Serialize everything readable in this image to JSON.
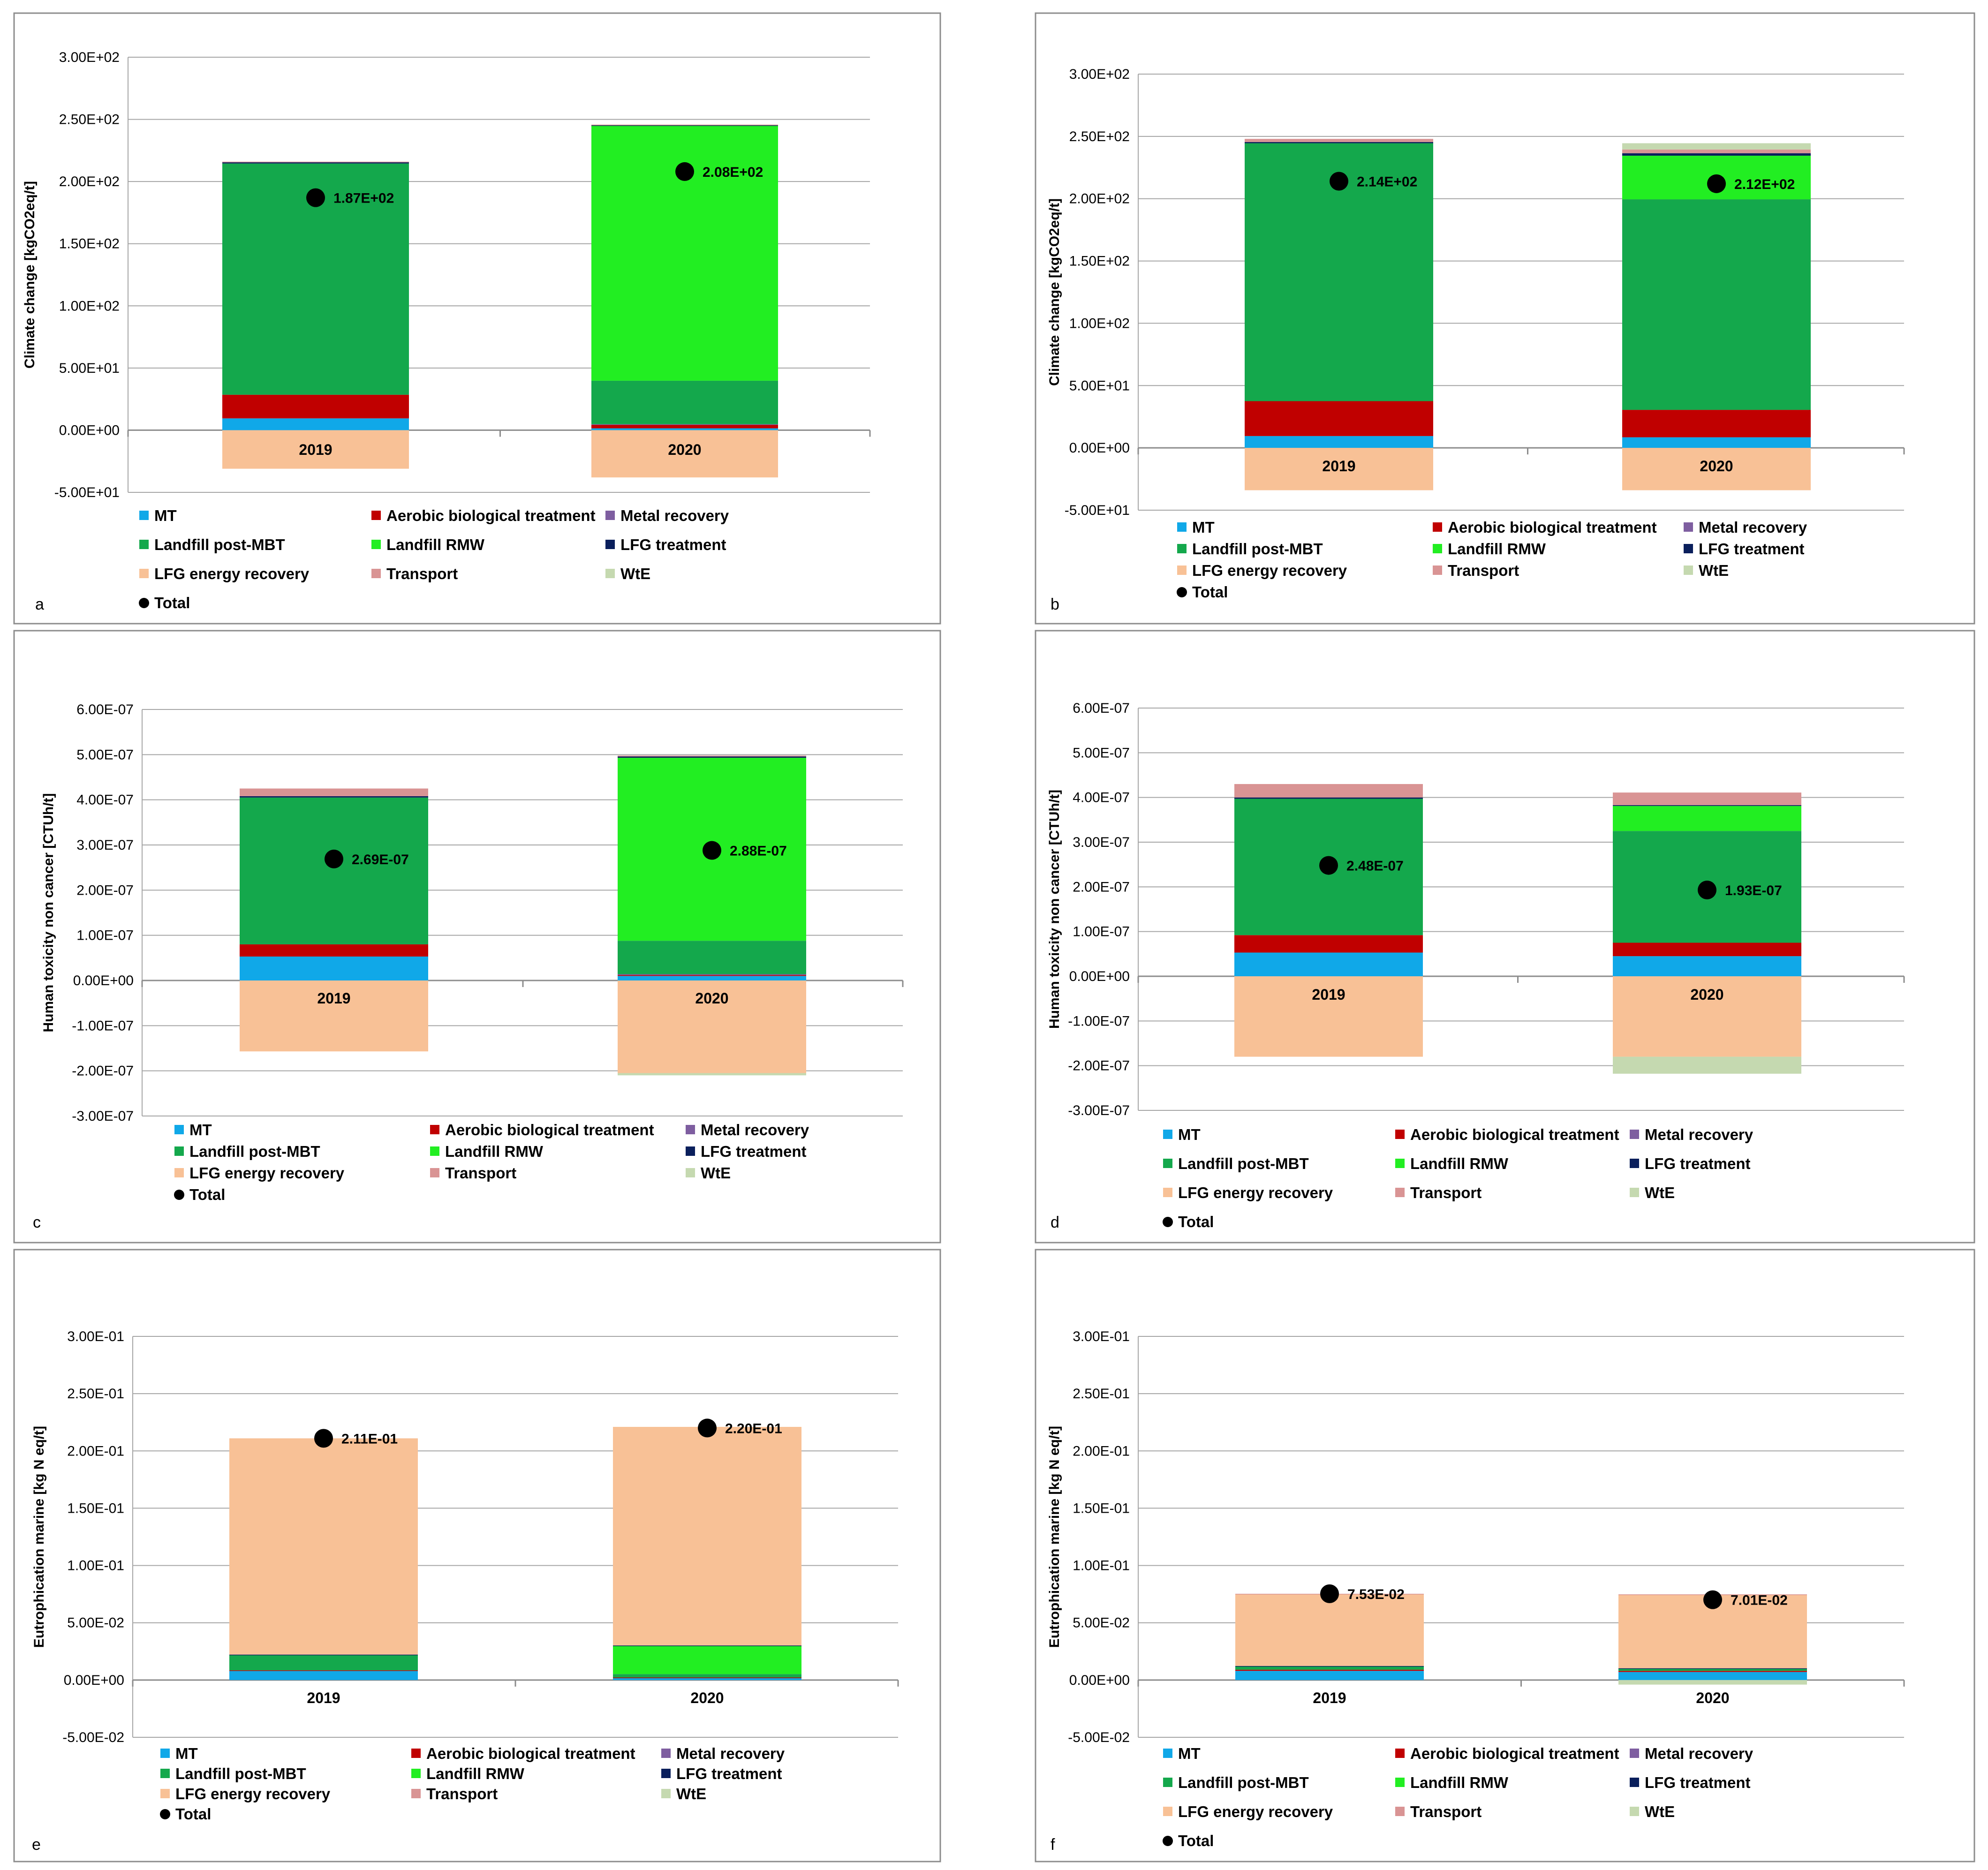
{
  "figure": {
    "categories": [
      "2019",
      "2020"
    ],
    "legend": {
      "items": [
        {
          "key": "mt",
          "label": "MT",
          "color": "#10A8E8",
          "marker": "square"
        },
        {
          "key": "abt",
          "label": "Aerobic biological treatment",
          "color": "#C00000",
          "marker": "square"
        },
        {
          "key": "metal",
          "label": "Metal recovery",
          "color": "#7E5EA0",
          "marker": "square"
        },
        {
          "key": "lfpost",
          "label": "Landfill post-MBT",
          "color": "#14A84C",
          "marker": "square"
        },
        {
          "key": "lfrmw",
          "label": "Landfill RMW",
          "color": "#22EE22",
          "marker": "square"
        },
        {
          "key": "lfg",
          "label": "LFG treatment",
          "color": "#0A1F5C",
          "marker": "square"
        },
        {
          "key": "lfgenergy",
          "label": "LFG energy recovery",
          "color": "#F8C196",
          "marker": "square"
        },
        {
          "key": "transport",
          "label": "Transport",
          "color": "#D99494",
          "marker": "square"
        },
        {
          "key": "wte",
          "label": "WtE",
          "color": "#C5D9B0",
          "marker": "square"
        },
        {
          "key": "total",
          "label": "Total",
          "color": "#000000",
          "marker": "circle"
        }
      ]
    }
  },
  "chart_data": [
    {
      "panel": "a",
      "type": "bar",
      "stacked": true,
      "ylabel": "Climate change [kgCO2eq/t]",
      "ylim": [
        -50,
        300
      ],
      "yticks": [
        -50,
        0,
        50,
        100,
        150,
        200,
        250,
        300
      ],
      "yticklabels": [
        "-5.00E+01",
        "0.00E+00",
        "5.00E+01",
        "1.00E+02",
        "1.50E+02",
        "2.00E+02",
        "2.50E+02",
        "3.00E+02"
      ],
      "categories": [
        "2019",
        "2020"
      ],
      "series": [
        {
          "key": "mt",
          "values": [
            9.5,
            1.5
          ]
        },
        {
          "key": "abt",
          "values": [
            19,
            3
          ]
        },
        {
          "key": "metal",
          "values": [
            0,
            0.3
          ]
        },
        {
          "key": "lfpost",
          "values": [
            186,
            35
          ]
        },
        {
          "key": "lfrmw",
          "values": [
            0,
            205
          ]
        },
        {
          "key": "lfg",
          "values": [
            1,
            0.5
          ]
        },
        {
          "key": "lfgenergy",
          "values": [
            -31,
            -38
          ]
        },
        {
          "key": "transport",
          "values": [
            0.5,
            0.5
          ]
        },
        {
          "key": "wte",
          "values": [
            0,
            0
          ]
        }
      ],
      "totals": [
        187,
        208
      ],
      "total_labels": [
        "1.87E+02",
        "2.08E+02"
      ]
    },
    {
      "panel": "b",
      "type": "bar",
      "stacked": true,
      "ylabel": "Climate change [kgCO2eq/t]",
      "ylim": [
        -50,
        300
      ],
      "yticks": [
        -50,
        0,
        50,
        100,
        150,
        200,
        250,
        300
      ],
      "yticklabels": [
        "-5.00E+01",
        "0.00E+00",
        "5.00E+01",
        "1.00E+02",
        "1.50E+02",
        "2.00E+02",
        "2.50E+02",
        "3.00E+02"
      ],
      "categories": [
        "2019",
        "2020"
      ],
      "series": [
        {
          "key": "mt",
          "values": [
            9.5,
            8.5
          ]
        },
        {
          "key": "abt",
          "values": [
            28,
            22
          ]
        },
        {
          "key": "metal",
          "values": [
            0,
            0
          ]
        },
        {
          "key": "lfpost",
          "values": [
            207,
            169
          ]
        },
        {
          "key": "lfrmw",
          "values": [
            0,
            35
          ]
        },
        {
          "key": "lfg",
          "values": [
            1,
            2
          ]
        },
        {
          "key": "lfgenergy",
          "values": [
            -34,
            -34
          ]
        },
        {
          "key": "transport",
          "values": [
            2.5,
            3
          ]
        },
        {
          "key": "wte",
          "values": [
            0,
            5
          ]
        }
      ],
      "totals": [
        214,
        212
      ],
      "total_labels": [
        "2.14E+02",
        "2.12E+02"
      ]
    },
    {
      "panel": "c",
      "type": "bar",
      "stacked": true,
      "ylabel": "Human toxicity non cancer  [CTUh/t]",
      "ylim": [
        -3e-07,
        6e-07
      ],
      "yticks": [
        -3e-07,
        -2e-07,
        -1e-07,
        0,
        1e-07,
        2e-07,
        3e-07,
        4e-07,
        5e-07,
        6e-07
      ],
      "yticklabels": [
        "-3.00E-07",
        "-2.00E-07",
        "-1.00E-07",
        "0.00E+00",
        "1.00E-07",
        "2.00E-07",
        "3.00E-07",
        "4.00E-07",
        "5.00E-07",
        "6.00E-07"
      ],
      "categories": [
        "2019",
        "2020"
      ],
      "series": [
        {
          "key": "mt",
          "values": [
            5.3e-08,
            1e-08
          ]
        },
        {
          "key": "abt",
          "values": [
            2.7e-08,
            2e-09
          ]
        },
        {
          "key": "metal",
          "values": [
            0,
            2e-09
          ]
        },
        {
          "key": "lfpost",
          "values": [
            3.25e-07,
            7.4e-08
          ]
        },
        {
          "key": "lfrmw",
          "values": [
            0,
            4.05e-07
          ]
        },
        {
          "key": "lfg",
          "values": [
            3e-09,
            3e-09
          ]
        },
        {
          "key": "lfgenergy",
          "values": [
            -1.57e-07,
            -2.05e-07
          ]
        },
        {
          "key": "transport",
          "values": [
            1.7e-08,
            2e-09
          ]
        },
        {
          "key": "wte",
          "values": [
            0,
            -5e-09
          ]
        }
      ],
      "totals": [
        2.69e-07,
        2.88e-07
      ],
      "total_labels": [
        "2.69E-07",
        "2.88E-07"
      ]
    },
    {
      "panel": "d",
      "type": "bar",
      "stacked": true,
      "ylabel": "Human toxicity non cancer [CTUh/t]",
      "ylim": [
        -3e-07,
        6e-07
      ],
      "yticks": [
        -3e-07,
        -2e-07,
        -1e-07,
        0,
        1e-07,
        2e-07,
        3e-07,
        4e-07,
        5e-07,
        6e-07
      ],
      "yticklabels": [
        "-3.00E-07",
        "-2.00E-07",
        "-1.00E-07",
        "0.00E+00",
        "1.00E-07",
        "2.00E-07",
        "3.00E-07",
        "4.00E-07",
        "5.00E-07",
        "6.00E-07"
      ],
      "categories": [
        "2019",
        "2020"
      ],
      "series": [
        {
          "key": "mt",
          "values": [
            5.3e-08,
            4.5e-08
          ]
        },
        {
          "key": "abt",
          "values": [
            3.9e-08,
            3e-08
          ]
        },
        {
          "key": "metal",
          "values": [
            0,
            0
          ]
        },
        {
          "key": "lfpost",
          "values": [
            3.05e-07,
            2.5e-07
          ]
        },
        {
          "key": "lfrmw",
          "values": [
            0,
            5.6e-08
          ]
        },
        {
          "key": "lfg",
          "values": [
            3e-09,
            2e-09
          ]
        },
        {
          "key": "lfgenergy",
          "values": [
            -1.8e-07,
            -1.8e-07
          ]
        },
        {
          "key": "transport",
          "values": [
            3e-08,
            2.8e-08
          ]
        },
        {
          "key": "wte",
          "values": [
            0,
            -3.8e-08
          ]
        }
      ],
      "totals": [
        2.48e-07,
        1.93e-07
      ],
      "total_labels": [
        "2.48E-07",
        "1.93E-07"
      ]
    },
    {
      "panel": "e",
      "type": "bar",
      "stacked": true,
      "ylabel": "Eutrophication marine [kg N eq/t]",
      "ylim": [
        -0.05,
        0.3
      ],
      "yticks": [
        -0.05,
        0,
        0.05,
        0.1,
        0.15,
        0.2,
        0.25,
        0.3
      ],
      "yticklabels": [
        "-5.00E-02",
        "0.00E+00",
        "5.00E-02",
        "1.00E-01",
        "1.50E-01",
        "2.00E-01",
        "2.50E-01",
        "3.00E-01"
      ],
      "categories": [
        "2019",
        "2020"
      ],
      "series": [
        {
          "key": "mt",
          "values": [
            0.008,
            0.002
          ]
        },
        {
          "key": "abt",
          "values": [
            0.0005,
            0.0002
          ]
        },
        {
          "key": "metal",
          "values": [
            0,
            0
          ]
        },
        {
          "key": "lfpost",
          "values": [
            0.0135,
            0.003
          ]
        },
        {
          "key": "lfrmw",
          "values": [
            0,
            0.0248
          ]
        },
        {
          "key": "lfg",
          "values": [
            0.0002,
            0.0002
          ]
        },
        {
          "key": "lfgenergy",
          "values": [
            0.1888,
            0.1908
          ]
        },
        {
          "key": "transport",
          "values": [
            0,
            0
          ]
        },
        {
          "key": "wte",
          "values": [
            0,
            0
          ]
        }
      ],
      "totals": [
        0.211,
        0.22
      ],
      "total_labels": [
        "2.11E-01",
        "2.20E-01"
      ]
    },
    {
      "panel": "f",
      "type": "bar",
      "stacked": true,
      "ylabel": "Eutrophication marine [kg N eq/t]",
      "ylim": [
        -0.05,
        0.3
      ],
      "yticks": [
        -0.05,
        0,
        0.05,
        0.1,
        0.15,
        0.2,
        0.25,
        0.3
      ],
      "yticklabels": [
        "-5.00E-02",
        "0.00E+00",
        "5.00E-02",
        "1.00E-01",
        "1.50E-01",
        "2.00E-01",
        "2.50E-01",
        "3.00E-01"
      ],
      "categories": [
        "2019",
        "2020"
      ],
      "series": [
        {
          "key": "mt",
          "values": [
            0.008,
            0.007
          ]
        },
        {
          "key": "abt",
          "values": [
            0.001,
            0.001
          ]
        },
        {
          "key": "metal",
          "values": [
            0,
            0
          ]
        },
        {
          "key": "lfpost",
          "values": [
            0.003,
            0.002
          ]
        },
        {
          "key": "lfrmw",
          "values": [
            0,
            0
          ]
        },
        {
          "key": "lfg",
          "values": [
            0.0003,
            0.0003
          ]
        },
        {
          "key": "lfgenergy",
          "values": [
            0.0625,
            0.064
          ]
        },
        {
          "key": "transport",
          "values": [
            0.0005,
            0.0005
          ]
        },
        {
          "key": "wte",
          "values": [
            0,
            -0.004
          ]
        }
      ],
      "totals": [
        0.0753,
        0.0701
      ],
      "total_labels": [
        "7.53E-02",
        "7.01E-02"
      ]
    }
  ]
}
